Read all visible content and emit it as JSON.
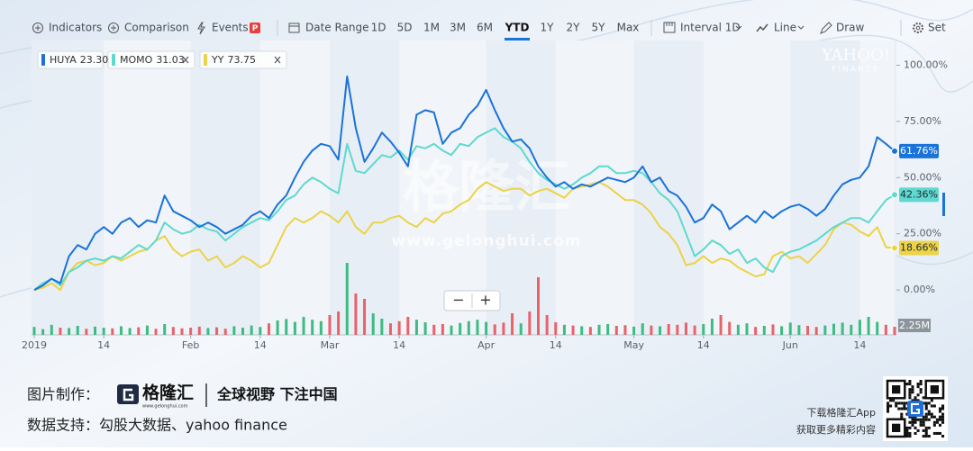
{
  "toolbar": {
    "tools": [
      "Indicators",
      "Comparison",
      "Events",
      "Date Range"
    ],
    "events_badge": "P",
    "ranges": [
      "1D",
      "5D",
      "1M",
      "3M",
      "6M",
      "YTD",
      "1Y",
      "2Y",
      "5Y",
      "Max"
    ],
    "active_range": 5,
    "right_tools": [
      "Interval 1D",
      "Line",
      "Draw",
      "Set"
    ]
  },
  "chart_data": {
    "type": "line",
    "categories": [
      "2019",
      null,
      null,
      null,
      null,
      null,
      null,
      null,
      "14",
      null,
      null,
      null,
      null,
      null,
      null,
      null,
      null,
      null,
      "Feb",
      null,
      null,
      null,
      null,
      null,
      null,
      null,
      "14",
      null,
      null,
      null,
      null,
      null,
      null,
      null,
      "Mar",
      null,
      null,
      null,
      null,
      null,
      null,
      null,
      "14",
      null,
      null,
      null,
      null,
      null,
      null,
      null,
      null,
      null,
      "Apr",
      null,
      null,
      null,
      null,
      null,
      null,
      null,
      "14",
      null,
      null,
      null,
      null,
      null,
      null,
      null,
      null,
      "May",
      null,
      null,
      null,
      null,
      null,
      null,
      null,
      "14",
      null,
      null,
      null,
      null,
      null,
      null,
      null,
      null,
      null,
      "Jun",
      null,
      null,
      null,
      null,
      null,
      null,
      null,
      "14",
      null,
      null,
      null,
      null
    ],
    "series": [
      {
        "name": "HUYA",
        "quote": {
          "value": 23.3,
          "label": "23.30"
        },
        "color": "#1a73d9",
        "label_text": "#ffffff",
        "end_label": "61.76%",
        "values": [
          0,
          2,
          5,
          3,
          15,
          20,
          18,
          25,
          28,
          25,
          30,
          32,
          28,
          31,
          30,
          42,
          35,
          33,
          31,
          28,
          30,
          28,
          25,
          27,
          29,
          33,
          35,
          32,
          38,
          42,
          50,
          57,
          62,
          65,
          64,
          58,
          95,
          72,
          57,
          63,
          70,
          66,
          61,
          55,
          78,
          80,
          79,
          65,
          70,
          72,
          78,
          82,
          89,
          80,
          72,
          66,
          67,
          63,
          55,
          50,
          46,
          48,
          45,
          47,
          46,
          48,
          50,
          49,
          48,
          50,
          55,
          48,
          50,
          44,
          42,
          37,
          30,
          32,
          38,
          35,
          27,
          30,
          33,
          30,
          35,
          32,
          35,
          37,
          38,
          36,
          33,
          36,
          42,
          47,
          49,
          50,
          55,
          68,
          65,
          61.76
        ]
      },
      {
        "name": "MOMO",
        "quote": {
          "value": 31.03,
          "label": "31.03"
        },
        "color": "#5fd9cf",
        "label_text": "#1f2a30",
        "end_label": "42.36%",
        "removable": true,
        "values": [
          0,
          3,
          5,
          2,
          8,
          10,
          13,
          14,
          13,
          15,
          14,
          17,
          20,
          18,
          22,
          30,
          27,
          25,
          26,
          29,
          27,
          26,
          22,
          25,
          28,
          30,
          32,
          31,
          35,
          40,
          42,
          47,
          50,
          48,
          45,
          43,
          65,
          53,
          52,
          56,
          60,
          59,
          62,
          58,
          64,
          63,
          65,
          62,
          60,
          65,
          64,
          68,
          70,
          72,
          68,
          66,
          63,
          57,
          52,
          49,
          47,
          45,
          47,
          50,
          52,
          55,
          55,
          52,
          52,
          53,
          52,
          48,
          43,
          40,
          35,
          25,
          15,
          18,
          22,
          20,
          16,
          18,
          12,
          14,
          10,
          8,
          15,
          17,
          18,
          20,
          22,
          25,
          28,
          30,
          32,
          32,
          30,
          35,
          40,
          42.36
        ]
      },
      {
        "name": "YY",
        "quote": {
          "value": 73.75,
          "label": "73.75"
        },
        "color": "#ecd347",
        "label_text": "#1f2a30",
        "end_label": "18.66%",
        "removable": true,
        "values": [
          0,
          1,
          3,
          0,
          8,
          12,
          13,
          11,
          12,
          15,
          13,
          15,
          17,
          18,
          22,
          24,
          18,
          15,
          17,
          18,
          13,
          15,
          10,
          12,
          15,
          13,
          10,
          12,
          20,
          28,
          32,
          30,
          32,
          35,
          33,
          30,
          35,
          28,
          25,
          30,
          30,
          32,
          33,
          30,
          28,
          32,
          30,
          34,
          35,
          38,
          40,
          45,
          48,
          46,
          44,
          45,
          45,
          42,
          44,
          45,
          43,
          41,
          45,
          46,
          47,
          48,
          46,
          43,
          40,
          40,
          38,
          34,
          28,
          25,
          20,
          11,
          12,
          15,
          12,
          14,
          13,
          10,
          8,
          6,
          7,
          15,
          17,
          14,
          15,
          12,
          16,
          20,
          27,
          30,
          29,
          26,
          24,
          28,
          19,
          18.66
        ]
      }
    ],
    "ylim": [
      -20,
      111
    ],
    "yticks": [
      {
        "value": 0,
        "label": "0.00%"
      },
      {
        "value": 25,
        "label": "25.00%"
      },
      {
        "value": 50,
        "label": "50.00%"
      },
      {
        "value": 75,
        "label": "75.00%"
      },
      {
        "value": 100,
        "label": "100.00%"
      }
    ],
    "grid": false,
    "volume": {
      "up_color": "#3dbb82",
      "down_color": "#e8626a",
      "ylim": [
        0,
        20
      ],
      "label": "2.25M",
      "values": [
        2.2,
        1.6,
        2.8,
        2.0,
        1.9,
        2.5,
        1.7,
        2.3,
        2.0,
        1.8,
        2.4,
        1.9,
        2.1,
        2.6,
        1.7,
        3.0,
        2.2,
        1.8,
        2.0,
        2.3,
        1.9,
        2.1,
        1.7,
        2.4,
        2.0,
        2.6,
        2.2,
        3.2,
        4.0,
        4.4,
        3.6,
        5.0,
        4.2,
        3.8,
        5.5,
        6.5,
        20.0,
        11.5,
        10.0,
        6.0,
        4.5,
        3.2,
        3.8,
        5.0,
        4.2,
        3.5,
        2.8,
        3.0,
        2.6,
        3.3,
        3.8,
        4.2,
        3.6,
        2.9,
        3.4,
        6.0,
        3.2,
        6.5,
        16.0,
        5.5,
        3.5,
        2.8,
        2.6,
        2.4,
        2.2,
        2.8,
        3.0,
        2.5,
        2.7,
        2.3,
        3.2,
        2.6,
        2.4,
        3.0,
        2.8,
        3.4,
        2.6,
        3.0,
        4.5,
        5.5,
        3.6,
        2.8,
        3.2,
        2.2,
        2.5,
        2.9,
        2.4,
        3.4,
        2.7,
        2.5,
        2.2,
        2.6,
        3.1,
        3.4,
        2.8,
        4.2,
        5.0,
        3.6,
        2.8,
        2.25
      ]
    },
    "zoom_controls": [
      "−",
      "+"
    ]
  },
  "watermarks": {
    "brand": "格隆汇",
    "url": "www.gelonghui.com",
    "yahoo": "YAHOO!",
    "finance": "FINANCE"
  },
  "footer": {
    "made_by": "图片制作：",
    "logo": "格隆汇",
    "logo_url": "www.gelonghui.com",
    "slogan": "全球视野 下注中国",
    "data_source": "数据支持：勾股大数据、yahoo finance",
    "download": "下载格隆汇App",
    "more": "获取更多精彩内容"
  }
}
